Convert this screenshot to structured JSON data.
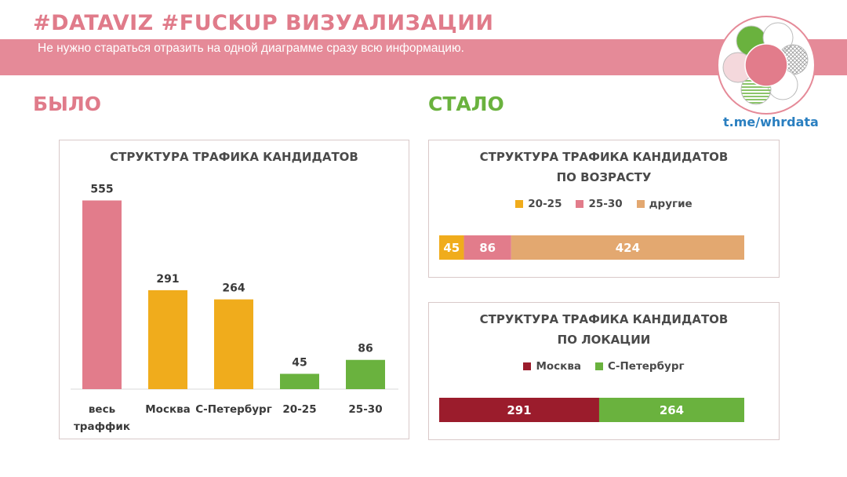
{
  "header": {
    "title": "#DATAVIZ #FUCKUP ВИЗУАЛИЗАЦИИ",
    "subtitle": "Не нужно стараться отразить на одной диаграмме сразу всю информацию."
  },
  "brand": {
    "link": "t.me/whrdata"
  },
  "sections": {
    "before": "БЫЛО",
    "after": "СТАЛО"
  },
  "colors": {
    "pink": "#e27c8b",
    "orange": "#f0ac1c",
    "green": "#6ab23e",
    "beige": "#e3a870",
    "maroon": "#9b1c2c"
  },
  "chart_data": [
    {
      "type": "bar",
      "title": "СТРУКТУРА ТРАФИКА КАНДИДАТОВ",
      "categories": [
        "весь траффик",
        "Москва",
        "С-Петербург",
        "20-25",
        "25-30"
      ],
      "values": [
        555,
        291,
        264,
        45,
        86
      ],
      "bar_colors": [
        "#e27c8b",
        "#f0ac1c",
        "#f0ac1c",
        "#6ab23e",
        "#6ab23e"
      ],
      "ylim": [
        0,
        600
      ],
      "grid": false
    },
    {
      "type": "bar",
      "orientation": "stacked-horizontal",
      "title_lines": [
        "СТРУКТУРА ТРАФИКА КАНДИДАТОВ",
        "ПО ВОЗРАСТУ"
      ],
      "series": [
        {
          "name": "20-25",
          "value": 45,
          "color": "#f0ac1c"
        },
        {
          "name": "25-30",
          "value": 86,
          "color": "#e27c8b"
        },
        {
          "name": "другие",
          "value": 424,
          "color": "#e3a870"
        }
      ],
      "total": 555,
      "legend": "top"
    },
    {
      "type": "bar",
      "orientation": "stacked-horizontal",
      "title_lines": [
        "СТРУКТУРА ТРАФИКА КАНДИДАТОВ",
        "ПО ЛОКАЦИИ"
      ],
      "series": [
        {
          "name": "Москва",
          "value": 291,
          "color": "#9b1c2c"
        },
        {
          "name": "С-Петербург",
          "value": 264,
          "color": "#6ab23e"
        }
      ],
      "total": 555,
      "legend": "top"
    }
  ]
}
